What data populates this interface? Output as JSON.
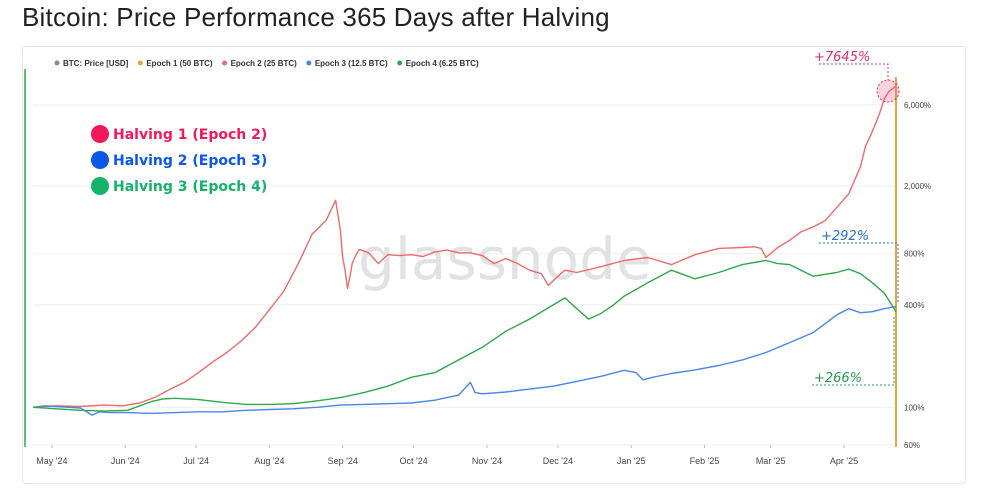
{
  "page": {
    "title": "Bitcoin: Price Performance 365 Days after Halving"
  },
  "colors": {
    "btc_price": "#7f8c8d",
    "epoch1": "#f0a040",
    "epoch2": "#ee6b6b",
    "epoch3": "#4a86e8",
    "epoch4": "#2ea84a",
    "marker1": "#f2185a",
    "marker2": "#0b57e8",
    "marker3": "#14b36a"
  },
  "legend_top": [
    {
      "label": "BTC: Price [USD]",
      "color": "#7f8c8d",
      "muted": false
    },
    {
      "label": "Epoch 1 (50 BTC)",
      "color": "#f0a040",
      "muted": true
    },
    {
      "label": "Epoch 2 (25 BTC)",
      "color": "#ee6b6b",
      "muted": false
    },
    {
      "label": "Epoch 3 (12.5 BTC)",
      "color": "#4a86e8",
      "muted": false
    },
    {
      "label": "Epoch 4 (6.25 BTC)",
      "color": "#2ea84a",
      "muted": false
    }
  ],
  "legend_big": [
    {
      "label": "Halving 1 (Epoch 2)",
      "color": "#f2185a"
    },
    {
      "label": "Halving 2 (Epoch 3)",
      "color": "#0b57e8"
    },
    {
      "label": "Halving 3 (Epoch 4)",
      "color": "#14b36a"
    }
  ],
  "watermark": "glassnode",
  "annotations": [
    {
      "text": "+7645%",
      "color": "#e0306a"
    },
    {
      "text": "+292%",
      "color": "#2a6fd6"
    },
    {
      "text": "+266%",
      "color": "#1f9e50"
    }
  ],
  "chart_data": {
    "type": "line",
    "title": "Bitcoin: Price Performance 365 Days after Halving",
    "y_scale": "log",
    "y_ticks": [
      {
        "value": 60,
        "label": "60%"
      },
      {
        "value": 100,
        "label": "100%"
      },
      {
        "value": 400,
        "label": "400%"
      },
      {
        "value": 800,
        "label": "800%"
      },
      {
        "value": 2000,
        "label": "2,000%"
      },
      {
        "value": 6000,
        "label": "6,000%"
      }
    ],
    "ylim": [
      60,
      9000
    ],
    "x_unit": "days since halving",
    "xlim": [
      0,
      365
    ],
    "x_ticks": [
      {
        "label": "May '24",
        "x": 8
      },
      {
        "label": "Jun '24",
        "x": 39
      },
      {
        "label": "Jul '24",
        "x": 69
      },
      {
        "label": "Aug '24",
        "x": 100
      },
      {
        "label": "Sep '24",
        "x": 131
      },
      {
        "label": "Oct '24",
        "x": 161
      },
      {
        "label": "Nov '24",
        "x": 192
      },
      {
        "label": "Dec '24",
        "x": 222
      },
      {
        "label": "Jan '25",
        "x": 253
      },
      {
        "label": "Feb '25",
        "x": 284
      },
      {
        "label": "Mar '25",
        "x": 312
      },
      {
        "label": "Apr '25",
        "x": 343
      }
    ],
    "series": [
      {
        "name": "Epoch 2 (25 BTC)",
        "color": "#ee6b6b",
        "x": [
          0,
          10,
          20,
          30,
          38,
          45,
          52,
          58,
          64,
          70,
          76,
          82,
          88,
          94,
          100,
          106,
          112,
          118,
          124,
          128,
          130,
          131,
          132,
          133,
          134,
          135,
          136,
          138,
          142,
          146,
          150,
          155,
          160,
          165,
          170,
          175,
          180,
          185,
          190,
          195,
          200,
          205,
          210,
          215,
          218,
          222,
          225,
          230,
          240,
          250,
          260,
          270,
          280,
          290,
          300,
          305,
          308,
          310,
          315,
          320,
          325,
          330,
          335,
          340,
          345,
          350,
          352,
          355,
          358,
          360,
          362,
          365
        ],
        "values": [
          100,
          102,
          101,
          103,
          102,
          106,
          115,
          128,
          140,
          160,
          185,
          210,
          245,
          295,
          375,
          480,
          690,
          1040,
          1260,
          1650,
          1100,
          760,
          640,
          500,
          580,
          700,
          760,
          850,
          810,
          700,
          790,
          780,
          790,
          770,
          820,
          840,
          810,
          810,
          780,
          700,
          750,
          700,
          640,
          610,
          520,
          590,
          640,
          620,
          670,
          730,
          760,
          690,
          790,
          860,
          870,
          880,
          860,
          760,
          870,
          960,
          1080,
          1150,
          1250,
          1500,
          1800,
          2600,
          3400,
          4200,
          5300,
          6500,
          7200,
          7745
        ]
      },
      {
        "name": "Epoch 3 (12.5 BTC)",
        "color": "#4a86e8",
        "x": [
          0,
          5,
          10,
          15,
          20,
          25,
          28,
          32,
          40,
          50,
          60,
          70,
          80,
          90,
          100,
          110,
          120,
          130,
          140,
          150,
          160,
          170,
          180,
          185,
          187,
          190,
          200,
          210,
          220,
          230,
          240,
          250,
          255,
          258,
          262,
          270,
          280,
          290,
          300,
          310,
          320,
          330,
          335,
          340,
          345,
          350,
          355,
          360,
          365
        ],
        "values": [
          100,
          102,
          101,
          100,
          99,
          90,
          94,
          93,
          93,
          92,
          93,
          94,
          94,
          96,
          97,
          98,
          100,
          103,
          104,
          105,
          106,
          110,
          118,
          140,
          122,
          120,
          123,
          128,
          133,
          142,
          152,
          165,
          160,
          145,
          150,
          158,
          166,
          176,
          190,
          210,
          240,
          275,
          310,
          350,
          380,
          360,
          365,
          380,
          392
        ]
      },
      {
        "name": "Epoch 4 (6.25 BTC)",
        "color": "#2ea84a",
        "x": [
          0,
          10,
          20,
          30,
          40,
          50,
          55,
          60,
          70,
          80,
          90,
          100,
          110,
          120,
          130,
          140,
          150,
          160,
          170,
          180,
          190,
          200,
          210,
          220,
          225,
          230,
          235,
          240,
          245,
          250,
          260,
          270,
          280,
          290,
          300,
          310,
          315,
          320,
          330,
          340,
          345,
          350,
          355,
          360,
          365
        ],
        "values": [
          100,
          98,
          96,
          95,
          96,
          108,
          112,
          113,
          111,
          107,
          104,
          104,
          105,
          109,
          114,
          122,
          133,
          150,
          160,
          190,
          225,
          280,
          330,
          400,
          440,
          380,
          330,
          355,
          395,
          450,
          540,
          640,
          570,
          620,
          690,
          730,
          700,
          690,
          590,
          620,
          650,
          610,
          540,
          470,
          366
        ]
      }
    ]
  }
}
